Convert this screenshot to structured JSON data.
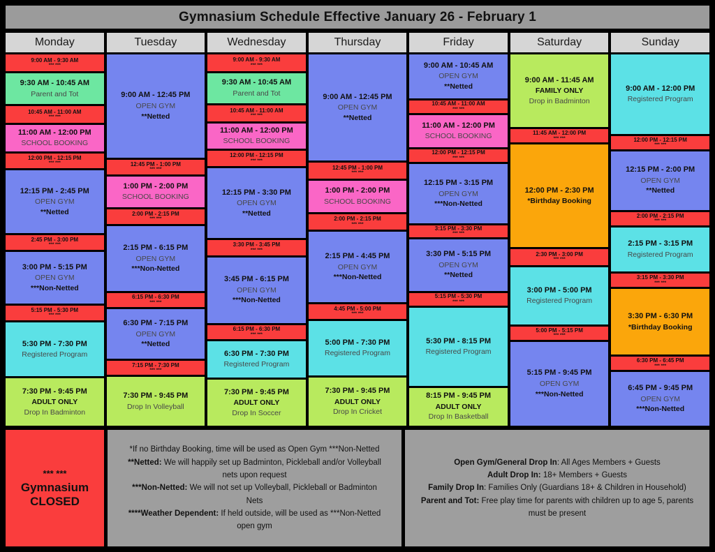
{
  "title": "Gymnasium Schedule Effective January 26 - February 1",
  "colors": {
    "red": "#fa3d3d",
    "green": "#6de7a1",
    "pink": "#fa66c6",
    "blue": "#7585ef",
    "cyan": "#5ce1e6",
    "lime": "#b8ea5e",
    "orange": "#fba60b",
    "title_bar": "#9b9b9b",
    "day_header": "#d6d6d6",
    "panel_gray": "#9e9e9e",
    "background": "#000000"
  },
  "days": [
    {
      "name": "Monday",
      "blocks": [
        {
          "time": "9:00 AM - 9:30 AM",
          "color": "red",
          "h": 23,
          "details": [
            {
              "text": "*** ***"
            }
          ]
        },
        {
          "time": "9:30 AM - 10:45 AM",
          "color": "green",
          "h": 45,
          "details": [
            {
              "text": "Parent and Tot"
            }
          ]
        },
        {
          "time": "10:45 AM - 11:00 AM",
          "color": "red",
          "h": 22,
          "details": [
            {
              "text": "*** ***"
            }
          ]
        },
        {
          "time": "11:00 AM - 12:00 PM",
          "color": "pink",
          "h": 38,
          "details": [
            {
              "text": "SCHOOL BOOKING"
            }
          ]
        },
        {
          "time": "12:00 PM - 12:15 PM",
          "color": "red",
          "h": 20,
          "details": [
            {
              "text": "*** ***"
            }
          ]
        },
        {
          "time": "12:15 PM - 2:45 PM",
          "color": "blue",
          "h": 96,
          "details": [
            {
              "text": "OPEN GYM"
            },
            {
              "text": "**Netted",
              "bold": true
            }
          ]
        },
        {
          "time": "2:45 PM - 3:00 PM",
          "color": "red",
          "h": 20,
          "details": [
            {
              "text": "*** ***"
            }
          ]
        },
        {
          "time": "3:00 PM - 5:15 PM",
          "color": "blue",
          "h": 78,
          "details": [
            {
              "text": "OPEN GYM"
            },
            {
              "text": "***Non-Netted",
              "bold": true
            }
          ]
        },
        {
          "time": "5:15 PM - 5:30 PM",
          "color": "red",
          "h": 20,
          "details": [
            {
              "text": "*** ***"
            }
          ]
        },
        {
          "time": "5:30 PM - 7:30 PM",
          "color": "cyan",
          "h": 82,
          "details": [
            {
              "text": "Registered Program"
            }
          ]
        },
        {
          "time": "7:30 PM - 9:45 PM",
          "color": "lime",
          "h": 72,
          "details": [
            {
              "text": "ADULT ONLY",
              "bold": true
            },
            {
              "text": "Drop In Badminton"
            }
          ]
        }
      ]
    },
    {
      "name": "Tuesday",
      "blocks": [
        {
          "time": "9:00 AM - 12:45 PM",
          "color": "blue",
          "h": 162,
          "details": [
            {
              "text": "OPEN GYM"
            },
            {
              "text": "**Netted",
              "bold": true
            }
          ]
        },
        {
          "time": "12:45 PM - 1:00 PM",
          "color": "red",
          "h": 20,
          "details": [
            {
              "text": "*** ***"
            }
          ]
        },
        {
          "time": "1:00 PM - 2:00 PM",
          "color": "pink",
          "h": 44,
          "details": [
            {
              "text": "SCHOOL BOOKING"
            }
          ]
        },
        {
          "time": "2:00 PM - 2:15 PM",
          "color": "red",
          "h": 20,
          "details": [
            {
              "text": "*** ***"
            }
          ]
        },
        {
          "time": "2:15 PM - 6:15 PM",
          "color": "blue",
          "h": 100,
          "details": [
            {
              "text": "OPEN GYM"
            },
            {
              "text": "***Non-Netted",
              "bold": true
            }
          ]
        },
        {
          "time": "6:15 PM - 6:30 PM",
          "color": "red",
          "h": 18,
          "details": [
            {
              "text": "*** ***"
            }
          ]
        },
        {
          "time": "6:30 PM - 7:15 PM",
          "color": "blue",
          "h": 76,
          "details": [
            {
              "text": "OPEN GYM"
            },
            {
              "text": "**Netted",
              "bold": true
            }
          ]
        },
        {
          "time": "7:15 PM - 7:30 PM",
          "color": "red",
          "h": 18,
          "details": [
            {
              "text": "*** ***"
            }
          ]
        },
        {
          "time": "7:30 PM - 9:45 PM",
          "color": "lime",
          "h": 74,
          "details": [
            {
              "text": "Drop In Volleyball"
            }
          ]
        }
      ]
    },
    {
      "name": "Wednesday",
      "blocks": [
        {
          "time": "9:00 AM - 9:30 AM",
          "color": "red",
          "h": 23,
          "details": [
            {
              "text": "*** ***"
            }
          ]
        },
        {
          "time": "9:30 AM - 10:45 AM",
          "color": "green",
          "h": 45,
          "details": [
            {
              "text": "Parent and Tot"
            }
          ]
        },
        {
          "time": "10:45 AM - 11:00 AM",
          "color": "red",
          "h": 22,
          "details": [
            {
              "text": "*** ***"
            }
          ]
        },
        {
          "time": "11:00 AM - 12:00 PM",
          "color": "pink",
          "h": 38,
          "details": [
            {
              "text": "SCHOOL BOOKING"
            }
          ]
        },
        {
          "time": "12:00 PM - 12:15 PM",
          "color": "red",
          "h": 20,
          "details": [
            {
              "text": "*** ***"
            }
          ]
        },
        {
          "time": "12:15 PM - 3:30 PM",
          "color": "blue",
          "h": 112,
          "details": [
            {
              "text": "OPEN GYM"
            },
            {
              "text": "**Netted",
              "bold": true
            }
          ]
        },
        {
          "time": "3:30 PM - 3:45 PM",
          "color": "red",
          "h": 20,
          "details": [
            {
              "text": "*** ***"
            }
          ]
        },
        {
          "time": "3:45 PM - 6:15 PM",
          "color": "blue",
          "h": 105,
          "details": [
            {
              "text": "OPEN GYM"
            },
            {
              "text": "***Non-Netted",
              "bold": true
            }
          ]
        },
        {
          "time": "6:15 PM - 6:30 PM",
          "color": "red",
          "h": 18,
          "details": [
            {
              "text": "*** ***"
            }
          ]
        },
        {
          "time": "6:30 PM - 7:30 PM",
          "color": "cyan",
          "h": 56,
          "details": [
            {
              "text": "Registered Program"
            }
          ]
        },
        {
          "time": "7:30 PM - 9:45 PM",
          "color": "lime",
          "h": 72,
          "details": [
            {
              "text": "ADULT ONLY",
              "bold": true
            },
            {
              "text": "Drop In Soccer"
            }
          ]
        }
      ]
    },
    {
      "name": "Thursday",
      "blocks": [
        {
          "time": "9:00 AM - 12:45 PM",
          "color": "blue",
          "h": 160,
          "details": [
            {
              "text": "OPEN GYM"
            },
            {
              "text": "**Netted",
              "bold": true
            }
          ]
        },
        {
          "time": "12:45 PM - 1:00 PM",
          "color": "red",
          "h": 20,
          "details": [
            {
              "text": "*** ***"
            }
          ]
        },
        {
          "time": "1:00 PM - 2:00 PM",
          "color": "pink",
          "h": 44,
          "details": [
            {
              "text": "SCHOOL BOOKING"
            }
          ]
        },
        {
          "time": "2:00 PM - 2:15 PM",
          "color": "red",
          "h": 20,
          "details": [
            {
              "text": "*** ***"
            }
          ]
        },
        {
          "time": "2:15 PM - 4:45 PM",
          "color": "blue",
          "h": 105,
          "details": [
            {
              "text": "OPEN GYM"
            },
            {
              "text": "***Non-Netted",
              "bold": true
            }
          ]
        },
        {
          "time": "4:45 PM - 5:00 PM",
          "color": "red",
          "h": 18,
          "details": [
            {
              "text": "*** ***"
            }
          ]
        },
        {
          "time": "5:00 PM - 7:30 PM",
          "color": "cyan",
          "h": 80,
          "details": [
            {
              "text": "Registered Program"
            }
          ]
        },
        {
          "time": "7:30 PM - 9:45 PM",
          "color": "lime",
          "h": 70,
          "details": [
            {
              "text": "ADULT ONLY",
              "bold": true
            },
            {
              "text": "Drop In Cricket"
            }
          ]
        }
      ]
    },
    {
      "name": "Friday",
      "blocks": [
        {
          "time": "9:00 AM - 10:45 AM",
          "color": "blue",
          "h": 64,
          "details": [
            {
              "text": "OPEN GYM"
            },
            {
              "text": "**Netted",
              "bold": true
            }
          ]
        },
        {
          "time": "10:45 AM - 11:00 AM",
          "color": "red",
          "h": 16,
          "details": [
            {
              "text": "*** ***"
            }
          ]
        },
        {
          "time": "11:00 AM - 12:00 PM",
          "color": "pink",
          "h": 45,
          "details": [
            {
              "text": "SCHOOL BOOKING"
            }
          ]
        },
        {
          "time": "12:00 PM - 12:15 PM",
          "color": "red",
          "h": 16,
          "details": [
            {
              "text": "*** ***"
            }
          ]
        },
        {
          "time": "12:15 PM - 3:15 PM",
          "color": "blue",
          "h": 88,
          "details": [
            {
              "text": "OPEN GYM"
            },
            {
              "text": "***Non-Netted",
              "bold": true
            }
          ]
        },
        {
          "time": "3:15 PM - 3:30 PM",
          "color": "red",
          "h": 14,
          "details": [
            {
              "text": "*** ***"
            }
          ]
        },
        {
          "time": "3:30 PM - 5:15 PM",
          "color": "blue",
          "h": 76,
          "details": [
            {
              "text": "OPEN GYM"
            },
            {
              "text": "**Netted",
              "bold": true
            }
          ]
        },
        {
          "time": "5:15 PM - 5:30 PM",
          "color": "red",
          "h": 16,
          "details": [
            {
              "text": "*** ***"
            }
          ]
        },
        {
          "time": "5:30 PM - 8:15 PM",
          "color": "cyan",
          "h": 117,
          "details": [
            {
              "text": "Registered Program"
            }
          ]
        },
        {
          "time": "8:15 PM - 9:45 PM",
          "color": "lime",
          "h": 55,
          "details": [
            {
              "text": "ADULT ONLY",
              "bold": true
            },
            {
              "text": "Drop In Basketball"
            }
          ]
        }
      ]
    },
    {
      "name": "Saturday",
      "blocks": [
        {
          "time": "9:00 AM - 11:45 AM",
          "color": "lime",
          "h": 107,
          "details": [
            {
              "text": "FAMILY ONLY",
              "bold": true
            },
            {
              "text": "Drop in Badminton"
            }
          ]
        },
        {
          "time": "11:45 AM - 12:00 PM",
          "color": "red",
          "h": 16,
          "details": [
            {
              "text": "*** ***"
            }
          ]
        },
        {
          "time": "12:00 PM - 2:30 PM",
          "color": "orange",
          "h": 152,
          "details": [
            {
              "text": "*Birthday Booking",
              "bold": true
            }
          ]
        },
        {
          "time": "2:30 PM - 3:00 PM",
          "color": "red",
          "h": 20,
          "details": [
            {
              "text": "*** ***"
            }
          ]
        },
        {
          "time": "3:00 PM - 5:00 PM",
          "color": "cyan",
          "h": 83,
          "details": [
            {
              "text": "Registered Program"
            }
          ]
        },
        {
          "time": "5:00 PM - 5:15 PM",
          "color": "red",
          "h": 16,
          "details": [
            {
              "text": "*** ***"
            }
          ]
        },
        {
          "time": "5:15 PM - 9:45 PM",
          "color": "blue",
          "h": 124,
          "details": [
            {
              "text": "OPEN GYM"
            },
            {
              "text": "***Non-Netted",
              "bold": true
            }
          ]
        }
      ]
    },
    {
      "name": "Sunday",
      "blocks": [
        {
          "time": "9:00 AM - 12:00 PM",
          "color": "cyan",
          "h": 118,
          "details": [
            {
              "text": "Registered Program"
            }
          ]
        },
        {
          "time": "12:00 PM - 12:15 PM",
          "color": "red",
          "h": 16,
          "details": [
            {
              "text": "*** ***"
            }
          ]
        },
        {
          "time": "12:15 PM - 2:00 PM",
          "color": "blue",
          "h": 86,
          "details": [
            {
              "text": "OPEN GYM"
            },
            {
              "text": "**Netted",
              "bold": true
            }
          ]
        },
        {
          "time": "2:00 PM - 2:15 PM",
          "color": "red",
          "h": 16,
          "details": [
            {
              "text": "*** ***"
            }
          ]
        },
        {
          "time": "2:15 PM - 3:15 PM",
          "color": "cyan",
          "h": 64,
          "details": [
            {
              "text": "Registered Program"
            }
          ]
        },
        {
          "time": "3:15 PM - 3:30 PM",
          "color": "red",
          "h": 16,
          "details": [
            {
              "text": "*** ***"
            }
          ]
        },
        {
          "time": "3:30 PM - 6:30 PM",
          "color": "orange",
          "h": 97,
          "details": [
            {
              "text": "*Birthday Booking",
              "bold": true
            }
          ]
        },
        {
          "time": "6:30 PM - 6:45 PM",
          "color": "red",
          "h": 16,
          "details": [
            {
              "text": "*** ***"
            }
          ]
        },
        {
          "time": "6:45 PM - 9:45 PM",
          "color": "blue",
          "h": 78,
          "details": [
            {
              "text": "OPEN GYM"
            },
            {
              "text": "***Non-Netted",
              "bold": true
            }
          ]
        }
      ]
    }
  ],
  "closed_block": {
    "lines": [
      "*** ***",
      "Gymnasium",
      "CLOSED"
    ]
  },
  "notes_left": [
    {
      "bold": "",
      "text": "*If no Birthday Booking, time will be used as Open Gym ***Non-Netted"
    },
    {
      "bold": "**Netted:",
      "text": " We will happily set up Badminton, Pickleball and/or Volleyball nets upon request"
    },
    {
      "bold": "***Non-Netted:",
      "text": " We will not set up Volleyball, Pickleball or Badminton Nets"
    },
    {
      "bold": "****Weather Dependent:",
      "text": " If held outside, will be used as ***Non-Netted open gym"
    }
  ],
  "notes_right": [
    {
      "bold": "Open Gym/General Drop In",
      "text": ": All Ages Members + Guests"
    },
    {
      "bold": "Adult Drop In:",
      "text": " 18+ Members + Guests"
    },
    {
      "bold": "Family Drop In",
      "text": ": Families Only (Guardians 18+ & Children in Household)"
    },
    {
      "bold": "Parent and Tot:",
      "text": " Free play time for parents with children up to age 5, parents must be present"
    }
  ]
}
